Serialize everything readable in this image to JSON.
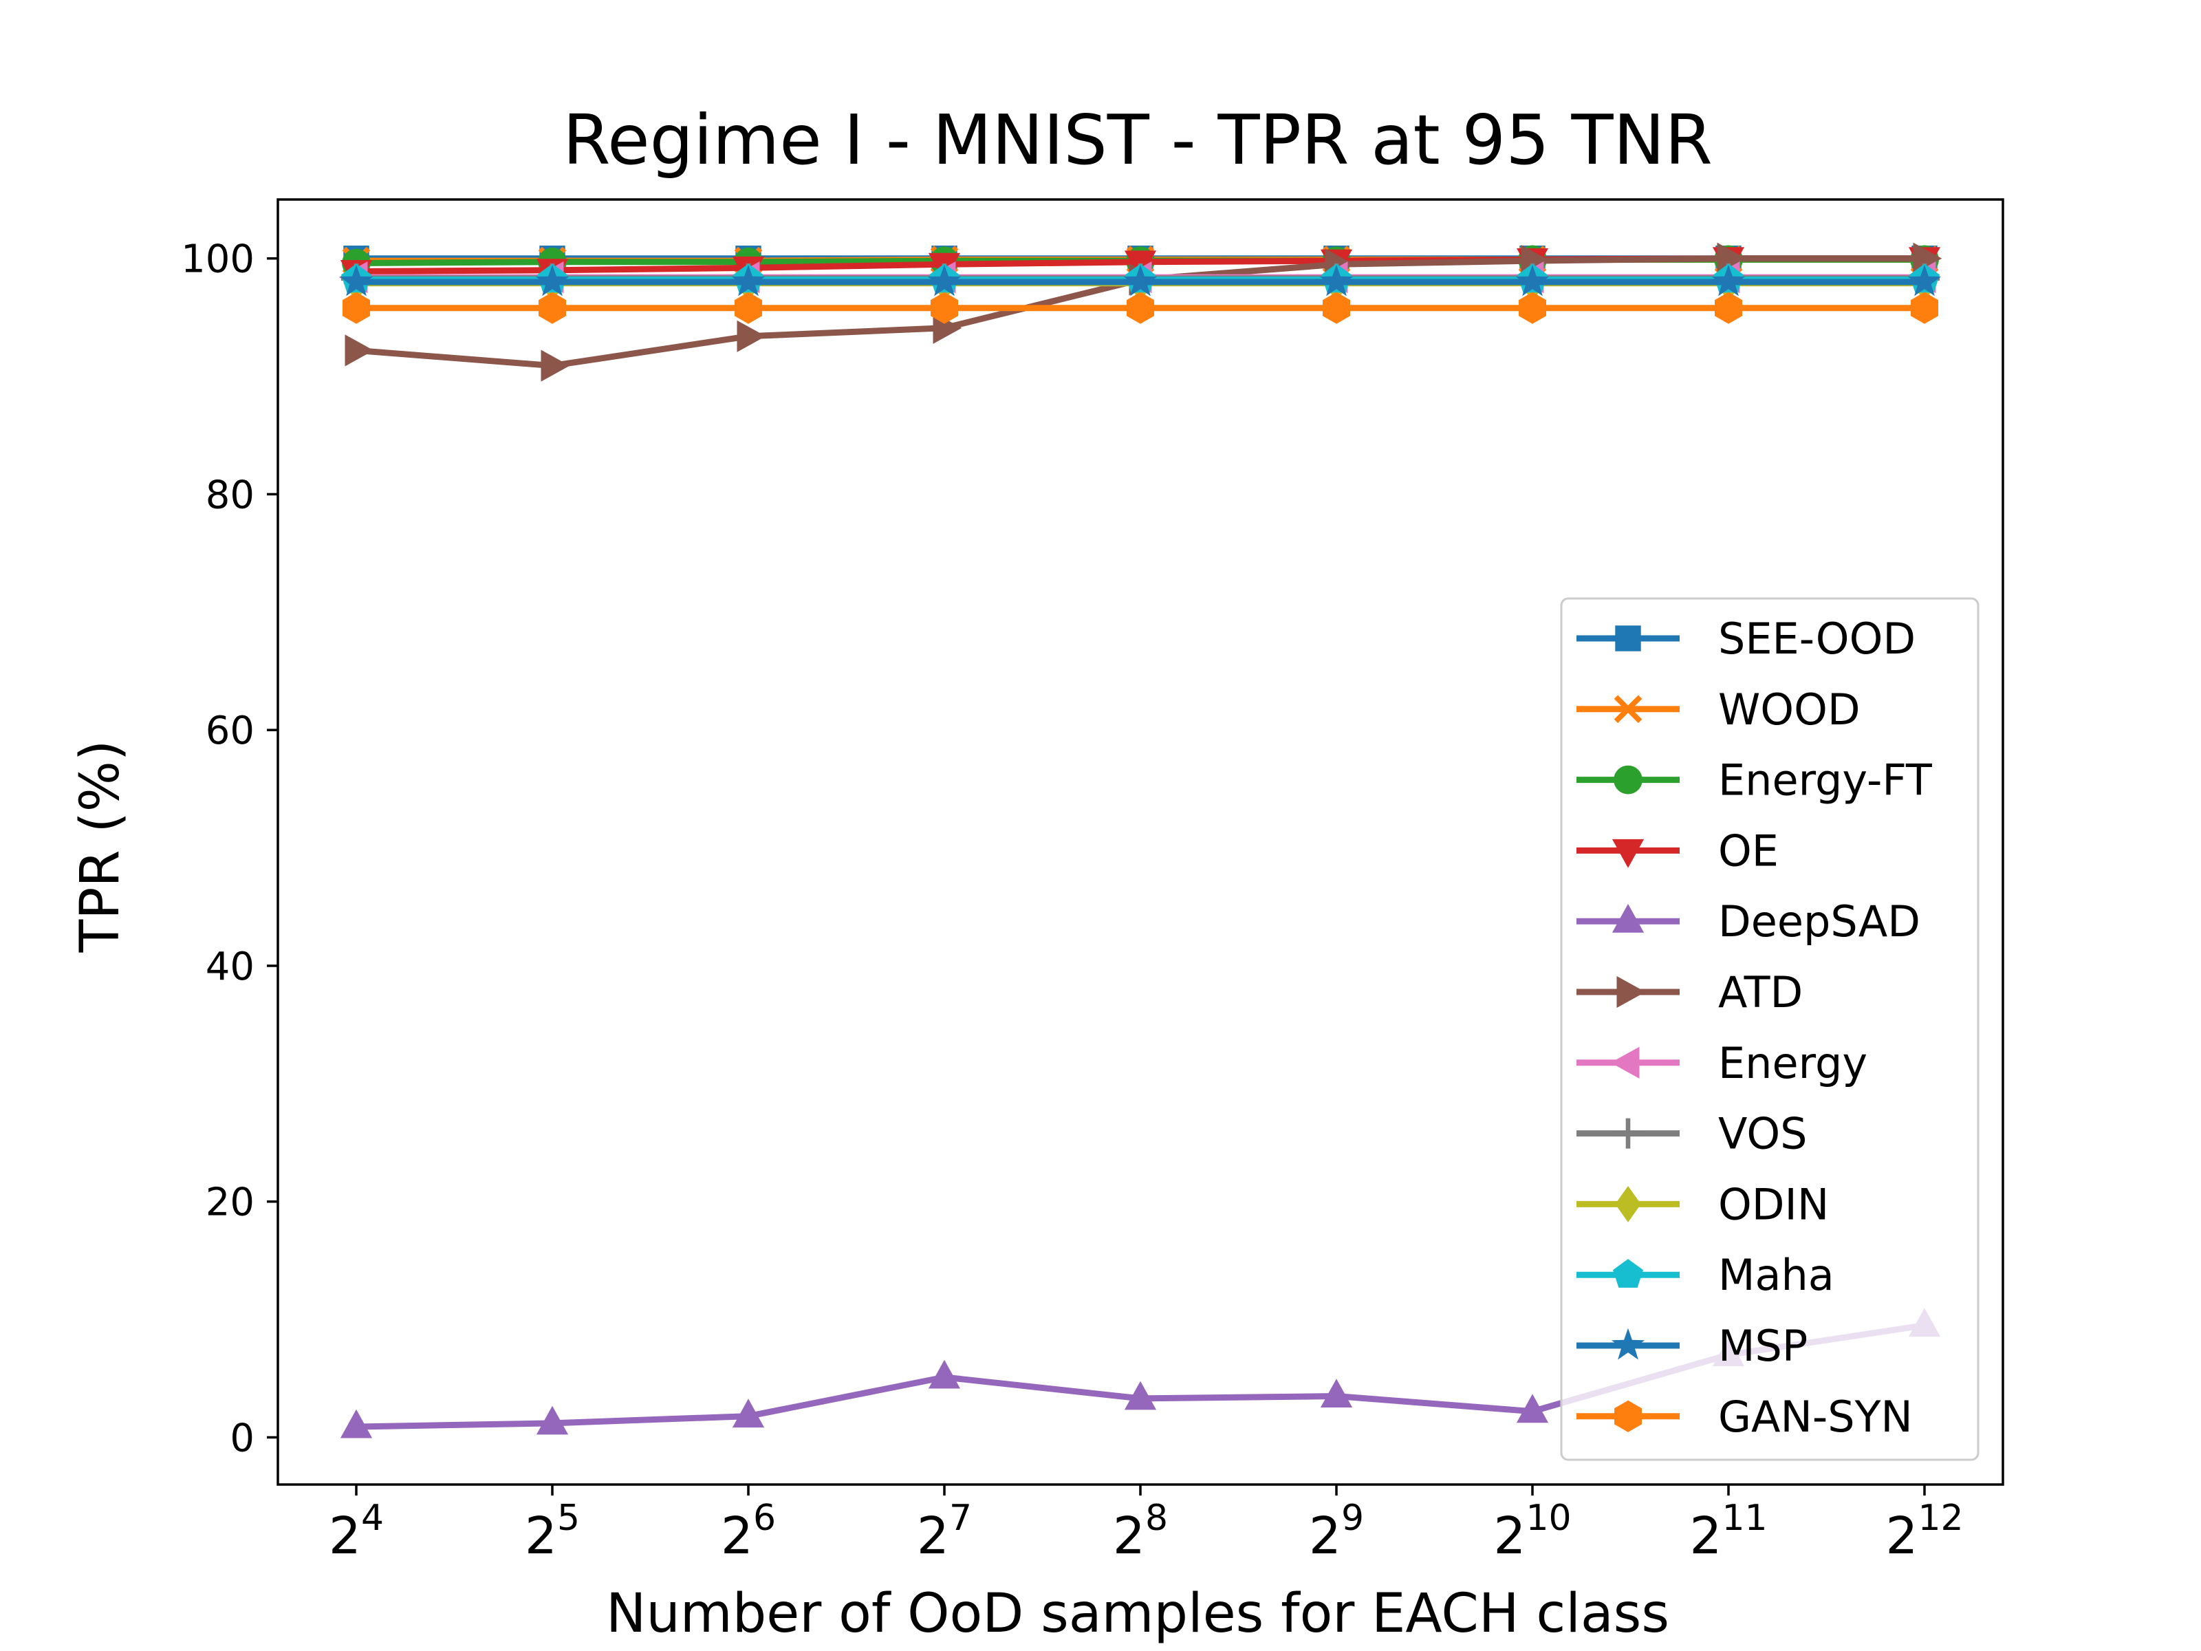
{
  "chart_data": {
    "type": "line",
    "title": "Regime I - MNIST - TPR at 95 TNR",
    "xlabel": "Number of OoD samples for EACH class",
    "ylabel": "TPR (%)",
    "x": [
      4,
      5,
      6,
      7,
      8,
      9,
      10,
      11,
      12
    ],
    "x_tick_base": "2",
    "x_tick_exponents": [
      "4",
      "5",
      "6",
      "7",
      "8",
      "9",
      "10",
      "11",
      "12"
    ],
    "y_ticks": [
      "0",
      "20",
      "40",
      "60",
      "80",
      "100"
    ],
    "xlim": [
      3.6,
      12.4
    ],
    "ylim": [
      -4,
      105
    ],
    "legend_position": "center-right",
    "grid": false,
    "series": [
      {
        "name": "SEE-OOD",
        "color": "#1f77b4",
        "marker": "square",
        "values": [
          100,
          100,
          100,
          100,
          100,
          100,
          100,
          100,
          100
        ]
      },
      {
        "name": "WOOD",
        "color": "#ff7f0e",
        "marker": "x",
        "values": [
          99.8,
          99.8,
          99.8,
          99.9,
          99.9,
          99.9,
          99.9,
          99.9,
          99.9
        ]
      },
      {
        "name": "Energy-FT",
        "color": "#2ca02c",
        "marker": "circle",
        "values": [
          99.6,
          99.7,
          99.7,
          99.8,
          99.8,
          99.8,
          99.9,
          99.9,
          99.9
        ]
      },
      {
        "name": "OE",
        "color": "#d62728",
        "marker": "triangle-down",
        "values": [
          98.9,
          99.0,
          99.2,
          99.5,
          99.7,
          99.8,
          99.9,
          100,
          100
        ]
      },
      {
        "name": "DeepSAD",
        "color": "#9467bd",
        "marker": "triangle-up",
        "values": [
          0.9,
          1.2,
          1.8,
          5.1,
          3.3,
          3.5,
          2.2,
          7.0,
          9.5
        ]
      },
      {
        "name": "ATD",
        "color": "#8c564b",
        "marker": "triangle-right",
        "values": [
          92.2,
          90.9,
          93.4,
          94.1,
          98.2,
          99.5,
          99.8,
          100,
          100
        ]
      },
      {
        "name": "Energy",
        "color": "#e377c2",
        "marker": "triangle-left",
        "values": [
          98.4,
          98.4,
          98.4,
          98.4,
          98.4,
          98.4,
          98.4,
          98.4,
          98.4
        ]
      },
      {
        "name": "VOS",
        "color": "#7f7f7f",
        "marker": "plus",
        "values": [
          98.3,
          98.3,
          98.3,
          98.3,
          98.3,
          98.3,
          98.3,
          98.3,
          98.3
        ]
      },
      {
        "name": "ODIN",
        "color": "#bcbd22",
        "marker": "diamond",
        "values": [
          97.9,
          97.9,
          97.9,
          97.9,
          97.9,
          97.9,
          97.9,
          97.9,
          97.9
        ]
      },
      {
        "name": "Maha",
        "color": "#17becf",
        "marker": "pentagon",
        "values": [
          98.2,
          98.2,
          98.2,
          98.2,
          98.2,
          98.2,
          98.2,
          98.2,
          98.2
        ]
      },
      {
        "name": "MSP",
        "color": "#1f77b4",
        "marker": "star",
        "values": [
          98.0,
          98.0,
          98.0,
          98.0,
          98.0,
          98.0,
          98.0,
          98.0,
          98.0
        ]
      },
      {
        "name": "GAN-SYN",
        "color": "#ff7f0e",
        "marker": "hexagon",
        "values": [
          95.8,
          95.8,
          95.8,
          95.8,
          95.8,
          95.8,
          95.8,
          95.8,
          95.8
        ]
      }
    ]
  }
}
